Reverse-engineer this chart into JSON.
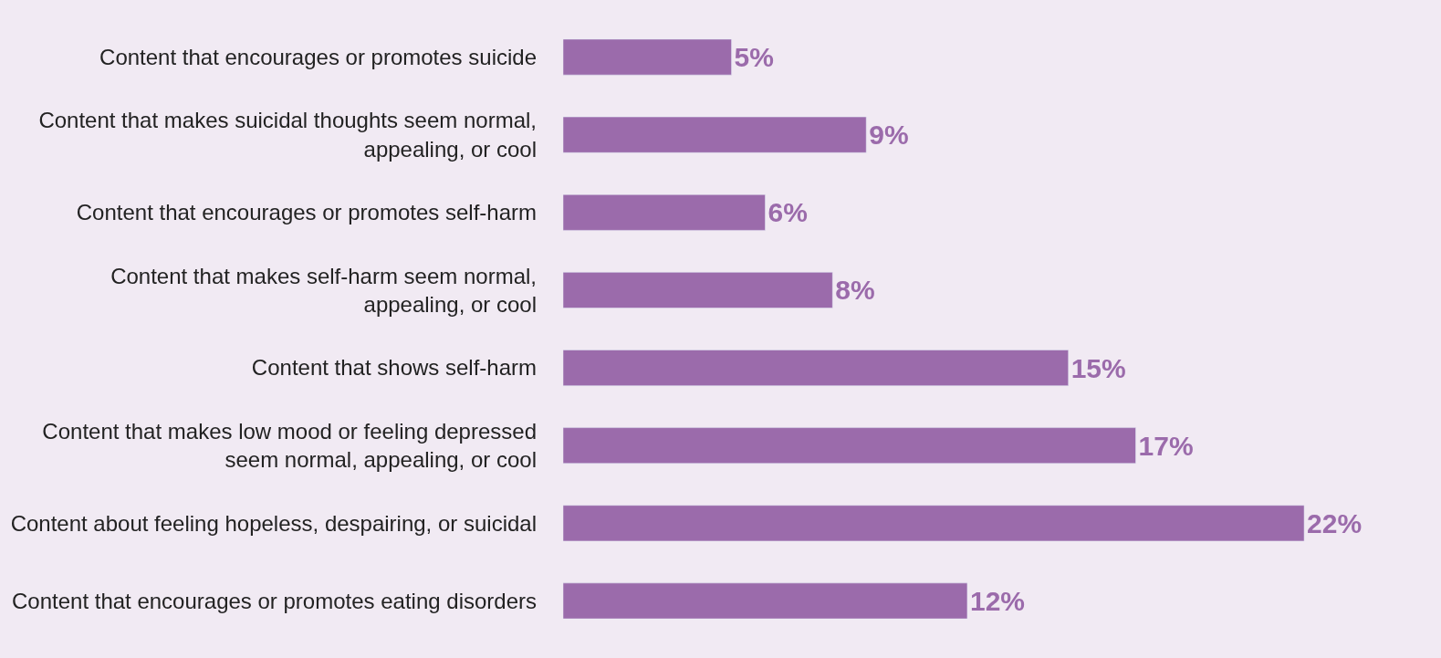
{
  "chart_data": {
    "type": "bar",
    "orientation": "horizontal",
    "categories": [
      "Content that encourages or promotes suicide",
      "Content that makes suicidal thoughts seem normal,\nappealing, or cool",
      "Content that encourages or promotes self-harm",
      "Content that makes self-harm seem normal,\nappealing, or cool",
      "Content that shows self-harm",
      "Content that makes low mood or feeling depressed\nseem normal, appealing, or cool",
      "Content about feeling hopeless, despairing, or suicidal",
      "Content that encourages or promotes eating disorders"
    ],
    "values": [
      5,
      9,
      6,
      8,
      15,
      17,
      22,
      12
    ],
    "value_labels": [
      "5%",
      "9%",
      "6%",
      "8%",
      "15%",
      "17%",
      "22%",
      "12%"
    ],
    "color": "#9b6bab",
    "tick_labels": "y"
  }
}
